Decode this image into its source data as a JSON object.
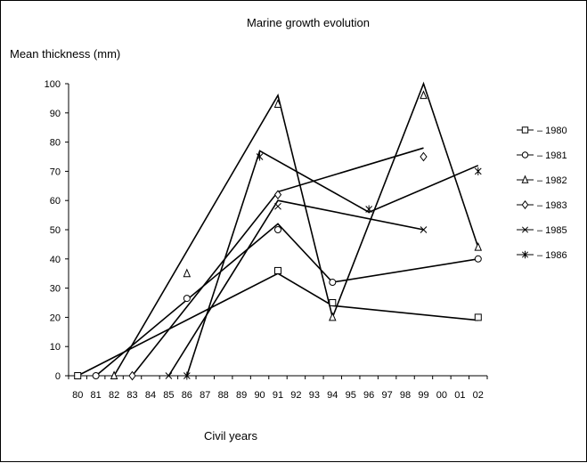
{
  "chart_data": {
    "type": "line",
    "title": "Marine growth evolution",
    "ylabel": "Mean thickness (mm)",
    "xlabel": "Civil years",
    "ylim": [
      0,
      100
    ],
    "yticks": [
      0,
      10,
      20,
      30,
      40,
      50,
      60,
      70,
      80,
      90,
      100
    ],
    "xticks": [
      "80",
      "81",
      "82",
      "83",
      "84",
      "85",
      "86",
      "87",
      "88",
      "89",
      "90",
      "91",
      "92",
      "93",
      "94",
      "95",
      "96",
      "97",
      "98",
      "99",
      "00",
      "01",
      "02"
    ],
    "grid": false,
    "legend_position": "right",
    "line_color": "#000000",
    "series": [
      {
        "name": "1980",
        "marker": "square",
        "line": [
          [
            80,
            0
          ],
          [
            91,
            35
          ],
          [
            94,
            24
          ],
          [
            102,
            19
          ]
        ],
        "points": [
          [
            80,
            0
          ],
          [
            91,
            36
          ],
          [
            94,
            25
          ],
          [
            102,
            20
          ]
        ]
      },
      {
        "name": "1981",
        "marker": "circle",
        "line": [
          [
            81,
            0
          ],
          [
            91,
            52
          ],
          [
            94,
            32
          ],
          [
            102,
            40
          ]
        ],
        "points": [
          [
            81,
            0
          ],
          [
            86,
            26.5
          ],
          [
            91,
            50
          ],
          [
            94,
            32
          ],
          [
            102,
            40
          ]
        ]
      },
      {
        "name": "1982",
        "marker": "triangle",
        "line": [
          [
            82,
            0
          ],
          [
            91,
            96
          ],
          [
            94,
            20
          ],
          [
            99,
            100
          ],
          [
            102,
            44
          ]
        ],
        "points": [
          [
            82,
            0
          ],
          [
            86,
            35
          ],
          [
            91,
            93
          ],
          [
            94,
            20
          ],
          [
            99,
            96
          ],
          [
            102,
            44
          ]
        ]
      },
      {
        "name": "1983",
        "marker": "diamond",
        "line": [
          [
            83,
            0
          ],
          [
            91,
            63
          ],
          [
            99,
            78
          ]
        ],
        "points": [
          [
            83,
            0
          ],
          [
            91,
            62
          ],
          [
            99,
            75
          ]
        ]
      },
      {
        "name": "1985",
        "marker": "x",
        "line": [
          [
            85,
            0
          ],
          [
            91,
            60
          ],
          [
            99,
            50
          ]
        ],
        "points": [
          [
            85,
            0
          ],
          [
            91,
            58
          ],
          [
            99,
            50
          ]
        ]
      },
      {
        "name": "1986",
        "marker": "asterisk",
        "line": [
          [
            86,
            0
          ],
          [
            90,
            77
          ],
          [
            96,
            56
          ],
          [
            102,
            72
          ]
        ],
        "points": [
          [
            86,
            0
          ],
          [
            90,
            75
          ],
          [
            96,
            57
          ],
          [
            102,
            70
          ]
        ]
      }
    ]
  }
}
